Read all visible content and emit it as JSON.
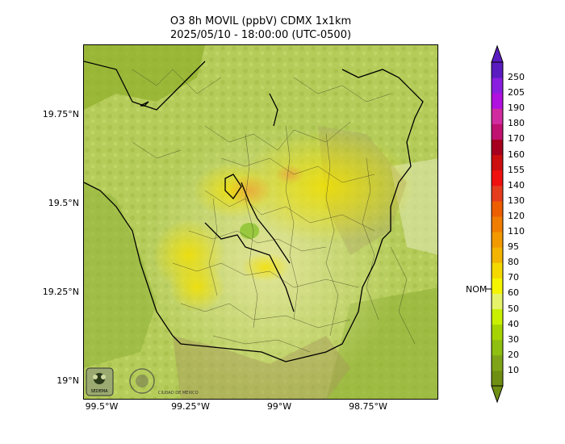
{
  "title_line1": "O3 8h MOVIL (ppbV) CDMX 1x1km",
  "title_line2": "2025/05/10 - 18:00:00 (UTC-0500)",
  "lat_labels": [
    "19.75°N",
    "19.5°N",
    "19.25°N",
    "19°N"
  ],
  "lon_labels": [
    "99.5°W",
    "99.25°W",
    "99°W",
    "98.75°W"
  ],
  "colorbar": {
    "ticks": [
      "10",
      "20",
      "30",
      "40",
      "50",
      "60",
      "70",
      "80",
      "95",
      "110",
      "120",
      "130",
      "140",
      "155",
      "160",
      "170",
      "180",
      "190",
      "205",
      "250"
    ],
    "colors": [
      "#6f8f12",
      "#7fa418",
      "#8fbf10",
      "#a6d400",
      "#c8f000",
      "#e6f36a",
      "#f5f500",
      "#f4d800",
      "#f2b400",
      "#f29900",
      "#f07d00",
      "#ec5e00",
      "#e63c1e",
      "#f01010",
      "#cc0e0e",
      "#a6001e",
      "#c01070",
      "#d12ba0",
      "#b010e0",
      "#8a1ee0",
      "#5a1cc0"
    ],
    "nom_label": "NOM"
  },
  "logos": {
    "left_text": "SEDEMA",
    "right_text": "CIUDAD DE MÉXICO"
  }
}
